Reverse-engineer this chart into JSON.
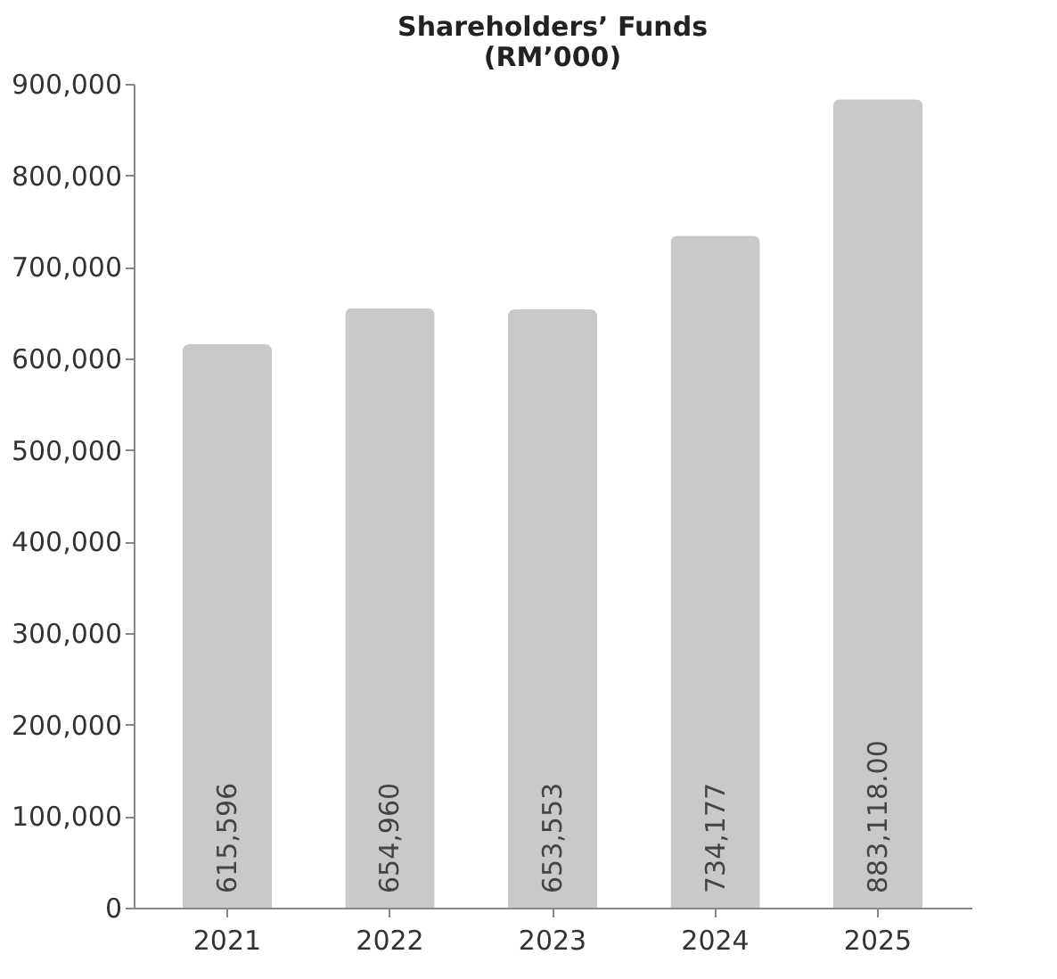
{
  "chart_data": {
    "type": "bar",
    "title": "Shareholders’ Funds",
    "subtitle": "(RM’000)",
    "categories": [
      "2021",
      "2022",
      "2023",
      "2024",
      "2025"
    ],
    "values": [
      615596,
      654960,
      653553,
      734177,
      883118
    ],
    "value_labels": [
      "615,596",
      "654,960",
      "653,553",
      "734,177",
      "883,118.00"
    ],
    "color": "#c9c9c9",
    "ylim": [
      0,
      900000
    ],
    "yticks": [
      0,
      {
        "value": 100000,
        "label": "100,000"
      },
      {
        "value": 200000,
        "label": "200,000"
      },
      {
        "value": 300000,
        "label": "300,000"
      },
      {
        "value": 400000,
        "label": "400,000"
      },
      {
        "value": 500000,
        "label": "500,000"
      },
      {
        "value": 600000,
        "label": "600,000"
      },
      {
        "value": 700000,
        "label": "700,000"
      },
      {
        "value": 800000,
        "label": "800,000"
      },
      {
        "value": 900000,
        "label": "900,000"
      }
    ],
    "grid": false
  }
}
